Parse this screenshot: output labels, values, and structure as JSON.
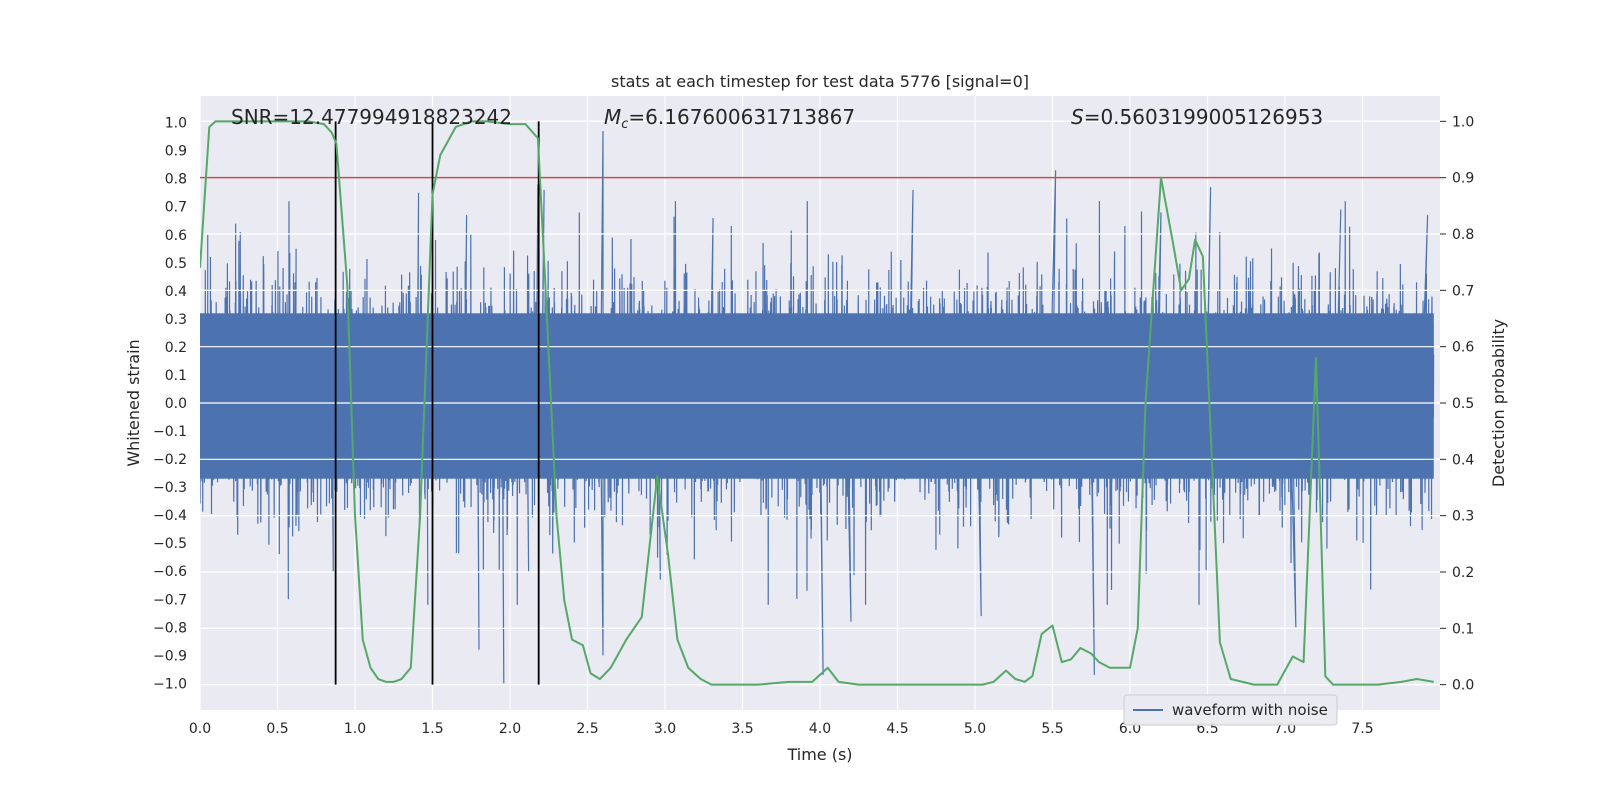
{
  "chart_data": {
    "type": "line",
    "title": "stats at each timestep for test data 5776 [signal=0]",
    "xlabel": "Time (s)",
    "ylabel": "Whitened strain",
    "y2label": "Detection probability",
    "xlim": [
      0.0,
      8.0
    ],
    "ylim": [
      -1.095,
      1.095
    ],
    "y2lim": [
      -0.045,
      1.045
    ],
    "x_ticks": [
      0.0,
      0.5,
      1.0,
      1.5,
      2.0,
      2.5,
      3.0,
      3.5,
      4.0,
      4.5,
      5.0,
      5.5,
      6.0,
      6.5,
      7.0,
      7.5
    ],
    "x_tick_labels": [
      "0.0",
      "0.5",
      "1.0",
      "1.5",
      "2.0",
      "2.5",
      "3.0",
      "3.5",
      "4.0",
      "4.5",
      "5.0",
      "5.5",
      "6.0",
      "6.5",
      "7.0",
      "7.5"
    ],
    "y_ticks": [
      -1.0,
      -0.9,
      -0.8,
      -0.7,
      -0.6,
      -0.5,
      -0.4,
      -0.3,
      -0.2,
      -0.1,
      0.0,
      0.1,
      0.2,
      0.3,
      0.4,
      0.5,
      0.6,
      0.7,
      0.8,
      0.9,
      1.0
    ],
    "y_tick_labels": [
      "−1.0",
      "−0.9",
      "−0.8",
      "−0.7",
      "−0.6",
      "−0.5",
      "−0.4",
      "−0.3",
      "−0.2",
      "−0.1",
      "0.0",
      "0.1",
      "0.2",
      "0.3",
      "0.4",
      "0.5",
      "0.6",
      "0.7",
      "0.8",
      "0.9",
      "1.0"
    ],
    "y2_ticks": [
      0.0,
      0.1,
      0.2,
      0.3,
      0.4,
      0.5,
      0.6,
      0.7,
      0.8,
      0.9,
      1.0
    ],
    "y2_tick_labels": [
      "0.0",
      "0.1",
      "0.2",
      "0.3",
      "0.4",
      "0.5",
      "0.6",
      "0.7",
      "0.8",
      "0.9",
      "1.0"
    ],
    "grid": true,
    "legend": {
      "position": "lower-right",
      "entries": [
        {
          "label": "waveform with noise",
          "color": "#4c72b0"
        }
      ]
    },
    "annotations": {
      "snr": "SNR=12.477994918823242",
      "mc_symbol": "M",
      "mc_subscript": "c",
      "mc_value": "=6.167600631713867",
      "s_symbol": "S",
      "s_value": "=0.5603199005126953"
    },
    "threshold": {
      "value": 0.9,
      "axis": "y2",
      "color": "#c44e52"
    },
    "vertical_lines": {
      "x": [
        0.875,
        1.5,
        2.185
      ],
      "color": "#000000"
    },
    "waveform": {
      "label": "waveform with noise",
      "color": "#4c72b0",
      "core_range": [
        -0.27,
        0.32
      ],
      "sample_rate_hz": 1024,
      "spikes": [
        {
          "x": 0.05,
          "y": 0.6
        },
        {
          "x": 0.23,
          "y": 0.64
        },
        {
          "x": 0.57,
          "y": -0.7
        },
        {
          "x": 0.62,
          "y": 0.55
        },
        {
          "x": 0.86,
          "y": -0.6
        },
        {
          "x": 1.41,
          "y": 0.75
        },
        {
          "x": 1.47,
          "y": -0.72
        },
        {
          "x": 1.72,
          "y": 0.67
        },
        {
          "x": 1.8,
          "y": -0.88
        },
        {
          "x": 1.96,
          "y": -1.0
        },
        {
          "x": 2.12,
          "y": -0.6
        },
        {
          "x": 2.18,
          "y": 0.78
        },
        {
          "x": 2.22,
          "y": 0.76
        },
        {
          "x": 2.6,
          "y": 0.97
        },
        {
          "x": 2.6,
          "y": -0.9
        },
        {
          "x": 2.97,
          "y": -0.63
        },
        {
          "x": 3.31,
          "y": 0.66
        },
        {
          "x": 4.02,
          "y": -0.97
        },
        {
          "x": 4.2,
          "y": -0.78
        },
        {
          "x": 4.6,
          "y": 0.76
        },
        {
          "x": 5.04,
          "y": -0.76
        },
        {
          "x": 5.52,
          "y": 0.83
        },
        {
          "x": 5.77,
          "y": -0.97
        },
        {
          "x": 6.2,
          "y": 0.68
        },
        {
          "x": 6.52,
          "y": 0.77
        },
        {
          "x": 7.07,
          "y": -0.8
        },
        {
          "x": 7.36,
          "y": 0.69
        },
        {
          "x": 7.92,
          "y": 0.67
        }
      ]
    },
    "series": [
      {
        "name": "detection probability",
        "axis": "y2",
        "color": "#55a868",
        "x": [
          0.0,
          0.06,
          0.1,
          0.15,
          0.25,
          0.4,
          0.55,
          0.7,
          0.8,
          0.85,
          0.88,
          0.95,
          1.0,
          1.05,
          1.1,
          1.15,
          1.2,
          1.25,
          1.3,
          1.36,
          1.42,
          1.5,
          1.55,
          1.65,
          1.75,
          1.85,
          2.0,
          2.1,
          2.18,
          2.23,
          2.3,
          2.35,
          2.4,
          2.47,
          2.52,
          2.58,
          2.65,
          2.75,
          2.85,
          2.95,
          3.02,
          3.08,
          3.15,
          3.23,
          3.3,
          3.4,
          3.6,
          3.8,
          3.95,
          4.05,
          4.12,
          4.25,
          4.5,
          4.8,
          5.05,
          5.12,
          5.2,
          5.26,
          5.32,
          5.37,
          5.43,
          5.5,
          5.56,
          5.62,
          5.68,
          5.75,
          5.8,
          5.87,
          6.0,
          6.05,
          6.1,
          6.2,
          6.28,
          6.33,
          6.38,
          6.42,
          6.47,
          6.52,
          6.58,
          6.65,
          6.8,
          6.95,
          7.05,
          7.12,
          7.2,
          7.26,
          7.31,
          7.45,
          7.6,
          7.75,
          7.85,
          7.96
        ],
        "y": [
          0.74,
          0.99,
          1.0,
          1.0,
          1.0,
          1.0,
          1.0,
          1.0,
          0.995,
          0.98,
          0.96,
          0.71,
          0.3,
          0.08,
          0.03,
          0.01,
          0.005,
          0.005,
          0.01,
          0.03,
          0.3,
          0.87,
          0.94,
          0.99,
          1.0,
          1.0,
          0.995,
          0.995,
          0.97,
          0.7,
          0.3,
          0.15,
          0.08,
          0.07,
          0.02,
          0.01,
          0.03,
          0.08,
          0.12,
          0.37,
          0.23,
          0.08,
          0.03,
          0.01,
          0.0,
          0.0,
          0.0,
          0.005,
          0.005,
          0.03,
          0.005,
          0.0,
          0.0,
          0.0,
          0.0,
          0.005,
          0.025,
          0.01,
          0.005,
          0.015,
          0.09,
          0.105,
          0.04,
          0.045,
          0.065,
          0.055,
          0.04,
          0.03,
          0.03,
          0.1,
          0.5,
          0.9,
          0.78,
          0.7,
          0.72,
          0.79,
          0.76,
          0.45,
          0.075,
          0.01,
          0.0,
          0.0,
          0.05,
          0.04,
          0.58,
          0.015,
          0.0,
          0.0,
          0.0,
          0.005,
          0.01,
          0.005
        ]
      }
    ]
  }
}
